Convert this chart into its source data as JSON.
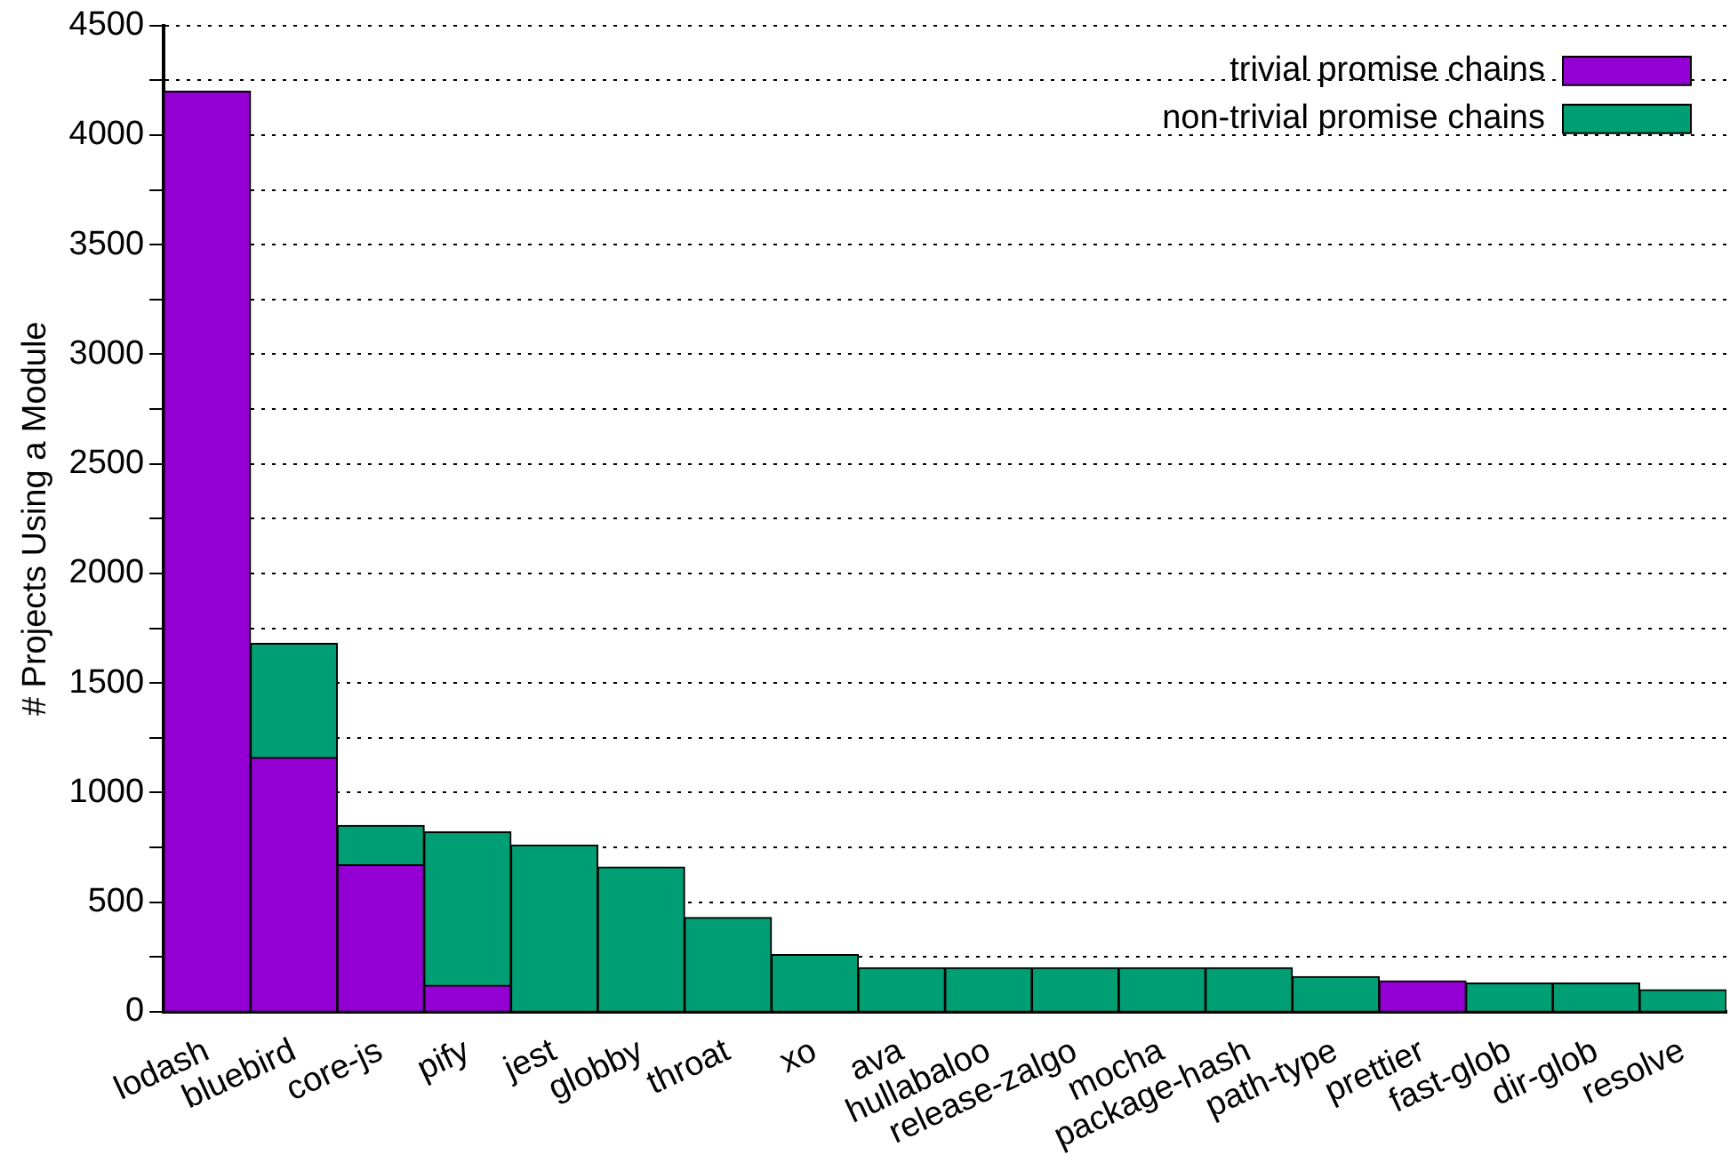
{
  "chart_data": {
    "type": "bar",
    "ylabel": "# Projects Using a Module",
    "categories": [
      "lodash",
      "bluebird",
      "core-js",
      "pify",
      "jest",
      "globby",
      "throat",
      "xo",
      "ava",
      "hullabaloo",
      "release-zalgo",
      "mocha",
      "package-hash",
      "path-type",
      "prettier",
      "fast-glob",
      "dir-glob",
      "resolve"
    ],
    "series": [
      {
        "name": "trivial promise chains",
        "color": "#9400d3",
        "values": [
          4200,
          1160,
          670,
          120,
          null,
          null,
          null,
          null,
          null,
          null,
          null,
          null,
          null,
          null,
          140,
          null,
          null,
          null
        ]
      },
      {
        "name": "non-trivial promise chains",
        "color": "#009e73",
        "values": [
          null,
          520,
          180,
          700,
          760,
          660,
          430,
          260,
          200,
          200,
          200,
          200,
          200,
          160,
          null,
          130,
          130,
          100
        ]
      }
    ],
    "stacked": true,
    "ylim": [
      0,
      4500
    ],
    "yticks": [
      0,
      {
        "value": 250,
        "label": null
      },
      500,
      {
        "value": 750,
        "label": null
      },
      1000,
      {
        "value": 1250,
        "label": null
      },
      1500,
      {
        "value": 1750,
        "label": null
      },
      2000,
      {
        "value": 2250,
        "label": null
      },
      2500,
      {
        "value": 2750,
        "label": null
      },
      3000,
      {
        "value": 3250,
        "label": null
      },
      3500,
      {
        "value": 3750,
        "label": null
      },
      4000,
      {
        "value": 4250,
        "label": null
      },
      4500
    ],
    "grid": "y",
    "legend": "top right"
  }
}
